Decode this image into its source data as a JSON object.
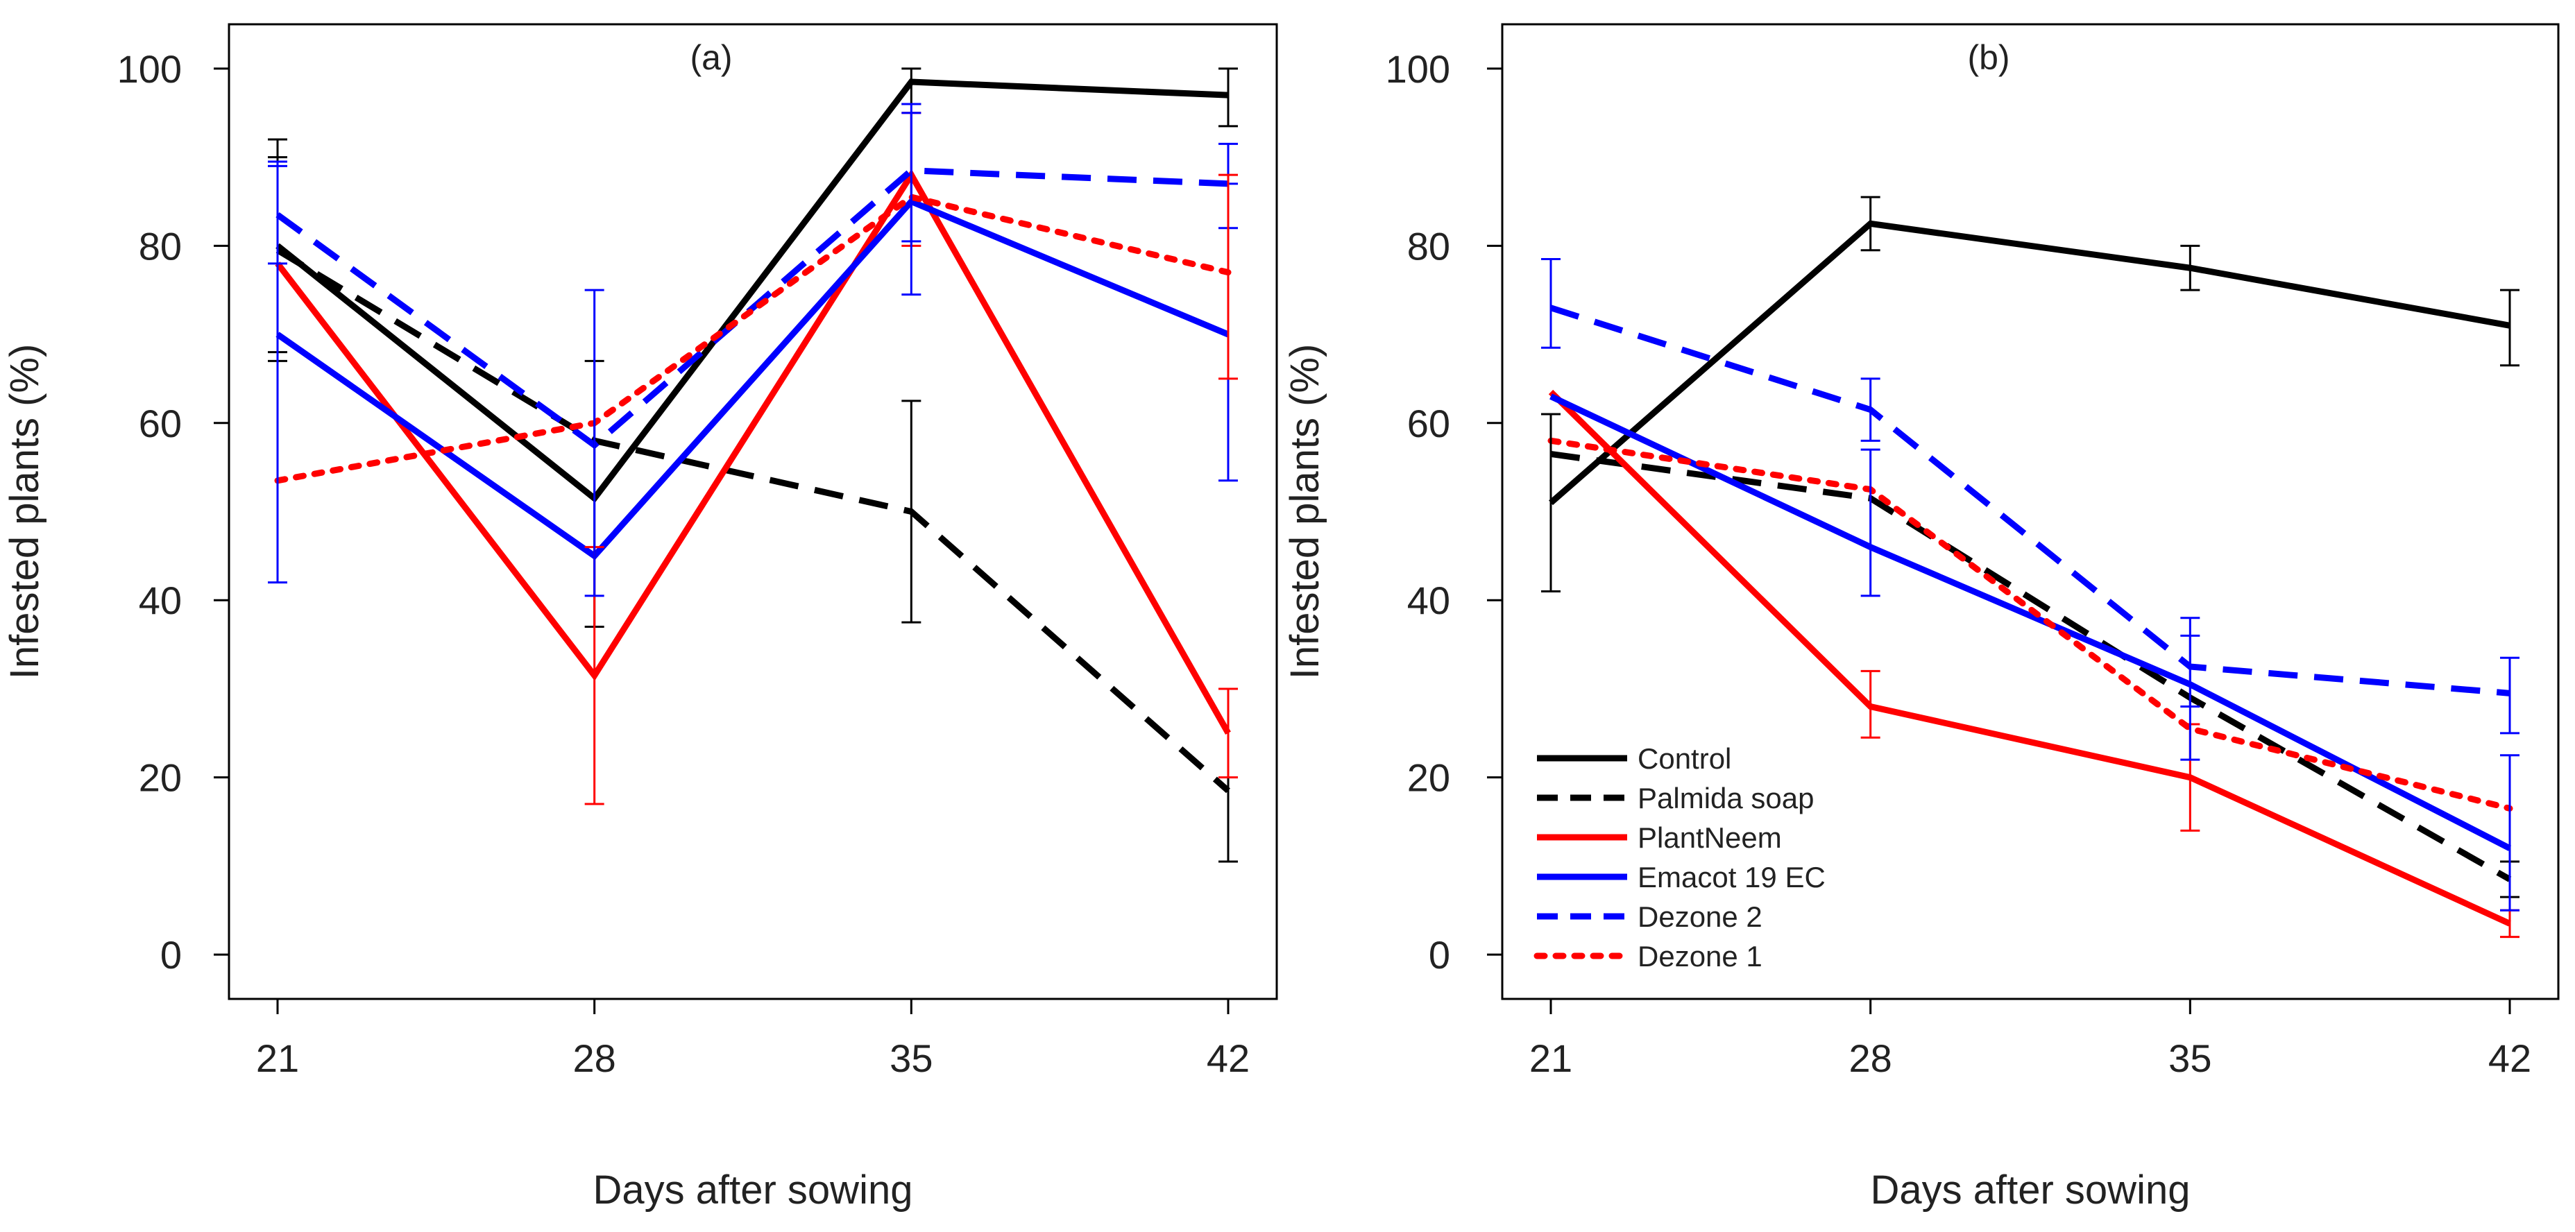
{
  "legend": {
    "placement": "bottom-left",
    "entries": [
      "Control",
      "Palmida soap",
      "PlantNeem",
      "Emacot 19 EC",
      "Dezone 2",
      "Dezone 1"
    ]
  },
  "chart_data": [
    {
      "type": "line",
      "panel_label": "(a)",
      "xlabel": "Days after sowing",
      "ylabel": "Infested plants (%)",
      "x": [
        21,
        28,
        35,
        42
      ],
      "xticks": [
        "21",
        "28",
        "35",
        "42"
      ],
      "yticks": [
        "0",
        "20",
        "40",
        "60",
        "80",
        "100"
      ],
      "ylim": [
        -5,
        105
      ],
      "grid": false,
      "series": [
        {
          "name": "Control",
          "color": "#000000",
          "dash": "solid",
          "values": [
            80,
            51.5,
            98.5,
            97
          ],
          "err": [
            [
              68,
              92
            ],
            [
              37,
              67
            ],
            [
              96,
              100
            ],
            [
              93.5,
              100
            ]
          ]
        },
        {
          "name": "Palmida soap",
          "color": "#000000",
          "dash": "dashed",
          "values": [
            79.5,
            58,
            50,
            18.5
          ],
          "err": [
            [
              67,
              90
            ],
            [
              null,
              null
            ],
            [
              37.5,
              62.5
            ],
            [
              10.5,
              30
            ]
          ]
        },
        {
          "name": "PlantNeem",
          "color": "#ff0000",
          "dash": "solid",
          "values": [
            78,
            31.5,
            88,
            25
          ],
          "err": [
            [
              null,
              null
            ],
            [
              17,
              46
            ],
            [
              80,
              95
            ],
            [
              20,
              30
            ]
          ]
        },
        {
          "name": "Emacot 19 EC",
          "color": "#0000ff",
          "dash": "solid",
          "values": [
            70,
            45,
            85,
            70
          ],
          "err": [
            [
              42,
              89
            ],
            [
              null,
              null
            ],
            [
              74.5,
              95
            ],
            [
              53.5,
              87
            ]
          ]
        },
        {
          "name": "Dezone 2",
          "color": "#0000ff",
          "dash": "dashed",
          "values": [
            83.5,
            57.5,
            88.5,
            87
          ],
          "err": [
            [
              78,
              89.5
            ],
            [
              40.5,
              75
            ],
            [
              80.5,
              96
            ],
            [
              82,
              91.5
            ]
          ]
        },
        {
          "name": "Dezone 1",
          "color": "#ff0000",
          "dash": "dotted",
          "values": [
            53.5,
            60,
            85.5,
            77
          ],
          "err": [
            [
              null,
              null
            ],
            [
              null,
              null
            ],
            [
              null,
              null
            ],
            [
              65,
              88
            ]
          ]
        }
      ]
    },
    {
      "type": "line",
      "panel_label": "(b)",
      "xlabel": "Days after sowing",
      "ylabel": "Infested plants (%)",
      "x": [
        21,
        28,
        35,
        42
      ],
      "xticks": [
        "21",
        "28",
        "35",
        "42"
      ],
      "yticks": [
        "0",
        "20",
        "40",
        "60",
        "80",
        "100"
      ],
      "ylim": [
        -5,
        105
      ],
      "grid": false,
      "series": [
        {
          "name": "Control",
          "color": "#000000",
          "dash": "solid",
          "values": [
            51,
            82.5,
            77.5,
            71
          ],
          "err": [
            [
              41,
              61
            ],
            [
              79.5,
              85.5
            ],
            [
              75,
              80
            ],
            [
              66.5,
              75
            ]
          ]
        },
        {
          "name": "Palmida soap",
          "color": "#000000",
          "dash": "dashed",
          "values": [
            56.5,
            51.5,
            29,
            8.5
          ],
          "err": [
            [
              null,
              null
            ],
            [
              null,
              null
            ],
            [
              null,
              null
            ],
            [
              6.5,
              10.5
            ]
          ]
        },
        {
          "name": "PlantNeem",
          "color": "#ff0000",
          "dash": "solid",
          "values": [
            63.5,
            28,
            20,
            3.5
          ],
          "err": [
            [
              null,
              null
            ],
            [
              24.5,
              32
            ],
            [
              14,
              26
            ],
            [
              2,
              5
            ]
          ]
        },
        {
          "name": "Emacot 19 EC",
          "color": "#0000ff",
          "dash": "solid",
          "values": [
            63,
            46,
            30.5,
            12
          ],
          "err": [
            [
              null,
              null
            ],
            [
              40.5,
              57
            ],
            [
              22,
              38
            ],
            [
              5,
              22.5
            ]
          ]
        },
        {
          "name": "Dezone 2",
          "color": "#0000ff",
          "dash": "dashed",
          "values": [
            73,
            61.5,
            32.5,
            29.5
          ],
          "err": [
            [
              68.5,
              78.5
            ],
            [
              58,
              65
            ],
            [
              28,
              36
            ],
            [
              25,
              33.5
            ]
          ]
        },
        {
          "name": "Dezone 1",
          "color": "#ff0000",
          "dash": "dotted",
          "values": [
            58,
            52.5,
            25.5,
            16.5
          ],
          "err": [
            [
              null,
              null
            ],
            [
              null,
              null
            ],
            [
              null,
              null
            ],
            [
              null,
              null
            ]
          ]
        }
      ]
    }
  ]
}
